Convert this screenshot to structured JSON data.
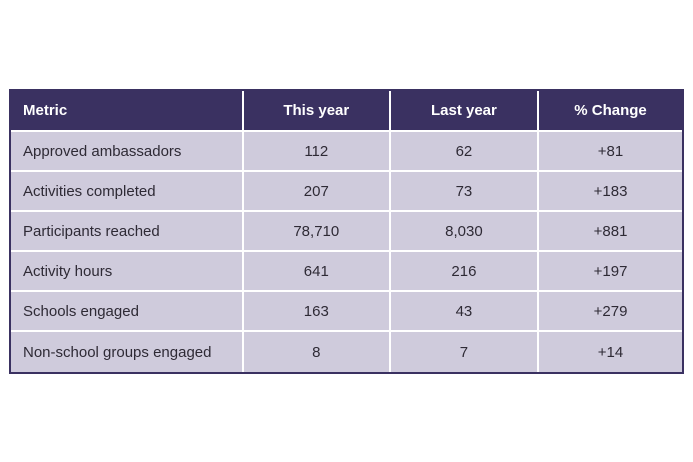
{
  "colors": {
    "header_bg": "#3a3161",
    "header_text": "#ffffff",
    "row_bg": "#cfcbdc",
    "body_text": "#2e2a35",
    "gridline": "#ffffff",
    "page_bg": "#ffffff"
  },
  "table": {
    "columns": {
      "metric": "Metric",
      "this_year": "This year",
      "last_year": "Last year",
      "pct_change": "% Change"
    },
    "rows": [
      {
        "metric": "Approved ambassadors",
        "this_year": "112",
        "last_year": "62",
        "pct_change": "+81"
      },
      {
        "metric": "Activities completed",
        "this_year": "207",
        "last_year": "73",
        "pct_change": "+183"
      },
      {
        "metric": "Participants reached",
        "this_year": "78,710",
        "last_year": "8,030",
        "pct_change": "+881"
      },
      {
        "metric": "Activity hours",
        "this_year": "641",
        "last_year": "216",
        "pct_change": "+197"
      },
      {
        "metric": "Schools engaged",
        "this_year": "163",
        "last_year": "43",
        "pct_change": "+279"
      },
      {
        "metric": "Non-school groups engaged",
        "this_year": "8",
        "last_year": "7",
        "pct_change": "+14"
      }
    ]
  },
  "chart_data": {
    "type": "table",
    "title": "",
    "columns": [
      "Metric",
      "This year",
      "Last year",
      "% Change"
    ],
    "rows": [
      [
        "Approved ambassadors",
        112,
        62,
        "+81"
      ],
      [
        "Activities completed",
        207,
        73,
        "+183"
      ],
      [
        "Participants reached",
        78710,
        8030,
        "+881"
      ],
      [
        "Activity hours",
        641,
        216,
        "+197"
      ],
      [
        "Schools engaged",
        163,
        43,
        "+279"
      ],
      [
        "Non-school groups engaged",
        8,
        7,
        "+14"
      ]
    ]
  }
}
